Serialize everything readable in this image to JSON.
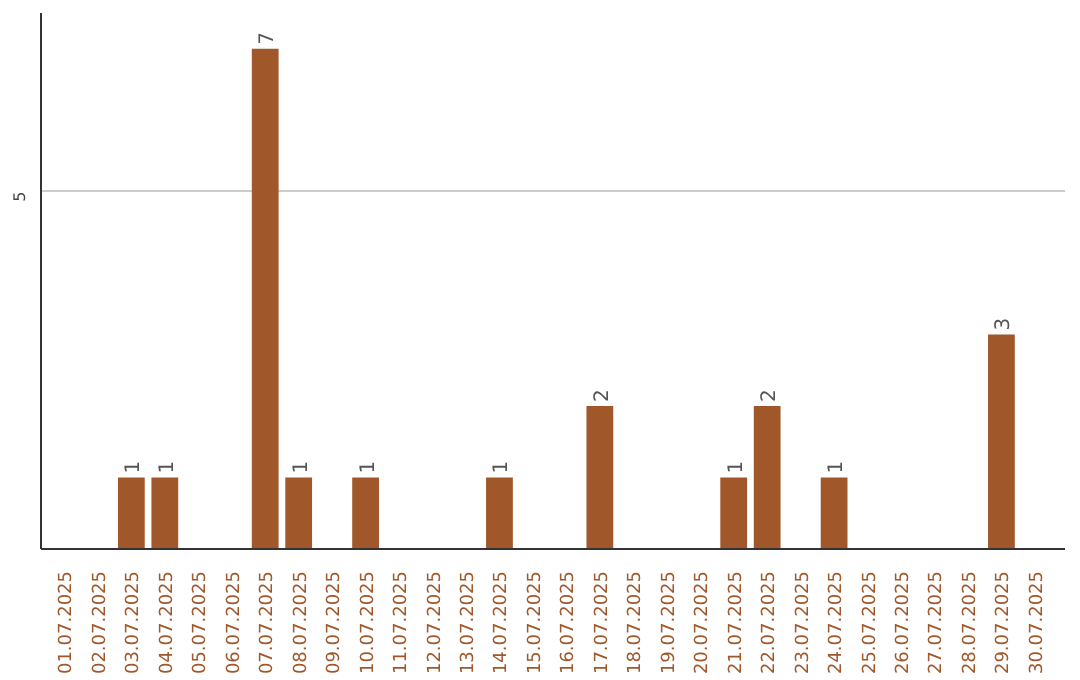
{
  "chart_data": {
    "type": "bar",
    "categories": [
      "01.07.2025",
      "02.07.2025",
      "03.07.2025",
      "04.07.2025",
      "05.07.2025",
      "06.07.2025",
      "07.07.2025",
      "08.07.2025",
      "09.07.2025",
      "10.07.2025",
      "11.07.2025",
      "12.07.2025",
      "13.07.2025",
      "14.07.2025",
      "15.07.2025",
      "16.07.2025",
      "17.07.2025",
      "18.07.2025",
      "19.07.2025",
      "20.07.2025",
      "21.07.2025",
      "22.07.2025",
      "23.07.2025",
      "24.07.2025",
      "25.07.2025",
      "26.07.2025",
      "27.07.2025",
      "28.07.2025",
      "29.07.2025",
      "30.07.2025"
    ],
    "values": [
      0,
      0,
      1,
      1,
      0,
      0,
      7,
      1,
      0,
      1,
      0,
      0,
      0,
      1,
      0,
      0,
      2,
      0,
      0,
      0,
      1,
      2,
      0,
      1,
      0,
      0,
      0,
      0,
      3,
      0
    ],
    "value_labels": [
      null,
      null,
      "1",
      "1",
      null,
      null,
      "7",
      "1",
      null,
      "1",
      null,
      null,
      null,
      "1",
      null,
      null,
      "2",
      null,
      null,
      null,
      "1",
      "2",
      null,
      "1",
      null,
      null,
      null,
      null,
      "3",
      null
    ],
    "color": "#a0572a",
    "ylim": [
      0,
      7.5
    ],
    "yticks": [
      5
    ],
    "grid": "y"
  }
}
